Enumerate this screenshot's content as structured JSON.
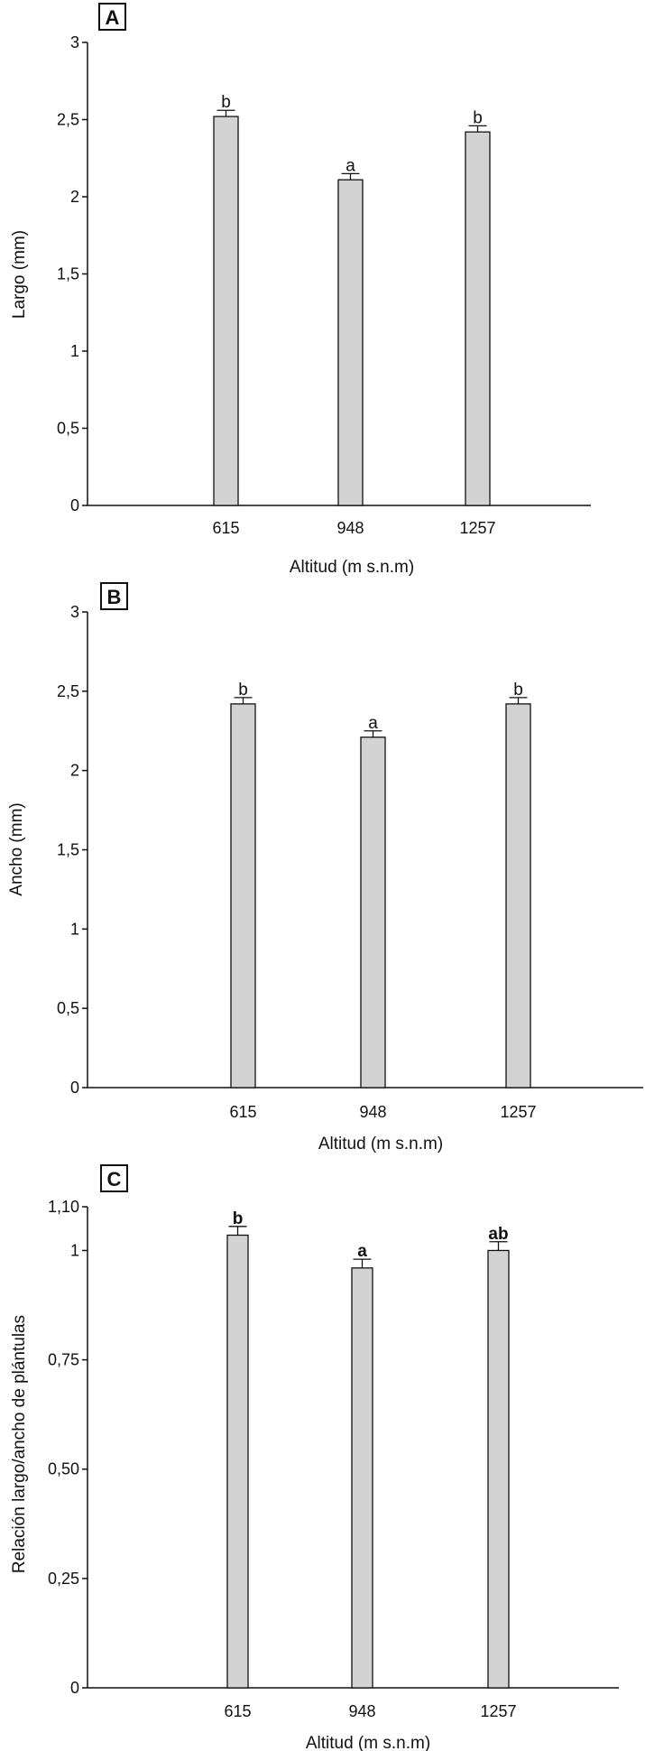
{
  "chart_data": [
    {
      "type": "bar",
      "panel_label": "A",
      "categories": [
        "615",
        "948",
        "1257"
      ],
      "values": [
        2.52,
        2.11,
        2.42
      ],
      "errors": [
        0.04,
        0.04,
        0.04
      ],
      "significance": [
        "b",
        "a",
        "b"
      ],
      "xlabel": "Altitud (m s.n.m)",
      "ylabel": "Largo (mm)",
      "ylim": [
        0,
        3
      ],
      "yticks": [
        0,
        0.5,
        1,
        1.5,
        2,
        2.5,
        3
      ],
      "yticklabels": [
        "0",
        "0,5",
        "1",
        "1,5",
        "2",
        "2,5",
        "3"
      ],
      "bar_color": "#d3d3d3",
      "grid": false,
      "legend": "none"
    },
    {
      "type": "bar",
      "panel_label": "B",
      "categories": [
        "615",
        "948",
        "1257"
      ],
      "values": [
        2.42,
        2.21,
        2.42
      ],
      "errors": [
        0.04,
        0.04,
        0.04
      ],
      "significance": [
        "b",
        "a",
        "b"
      ],
      "xlabel": "Altitud (m s.n.m)",
      "ylabel": "Ancho (mm)",
      "ylim": [
        0,
        3
      ],
      "yticks": [
        0,
        0.5,
        1,
        1.5,
        2,
        2.5,
        3
      ],
      "yticklabels": [
        "0",
        "0,5",
        "1",
        "1,5",
        "2",
        "2,5",
        "3"
      ],
      "bar_color": "#d3d3d3",
      "grid": false,
      "legend": "none"
    },
    {
      "type": "bar",
      "panel_label": "C",
      "categories": [
        "615",
        "948",
        "1257"
      ],
      "values": [
        1.035,
        0.96,
        1.0
      ],
      "errors": [
        0.02,
        0.02,
        0.02
      ],
      "significance": [
        "b",
        "a",
        "ab"
      ],
      "significance_bold": true,
      "xlabel": "Altitud (m s.n.m)",
      "ylabel": "Relación largo/ancho de plántulas",
      "ylim": [
        0,
        1.1
      ],
      "yticks": [
        0,
        0.25,
        0.5,
        0.75,
        1,
        1.1
      ],
      "yticklabels": [
        "0",
        "0,25",
        "0,50",
        "0,75",
        "1",
        "1,10"
      ],
      "bar_color": "#d3d3d3",
      "grid": false,
      "legend": "none"
    }
  ]
}
